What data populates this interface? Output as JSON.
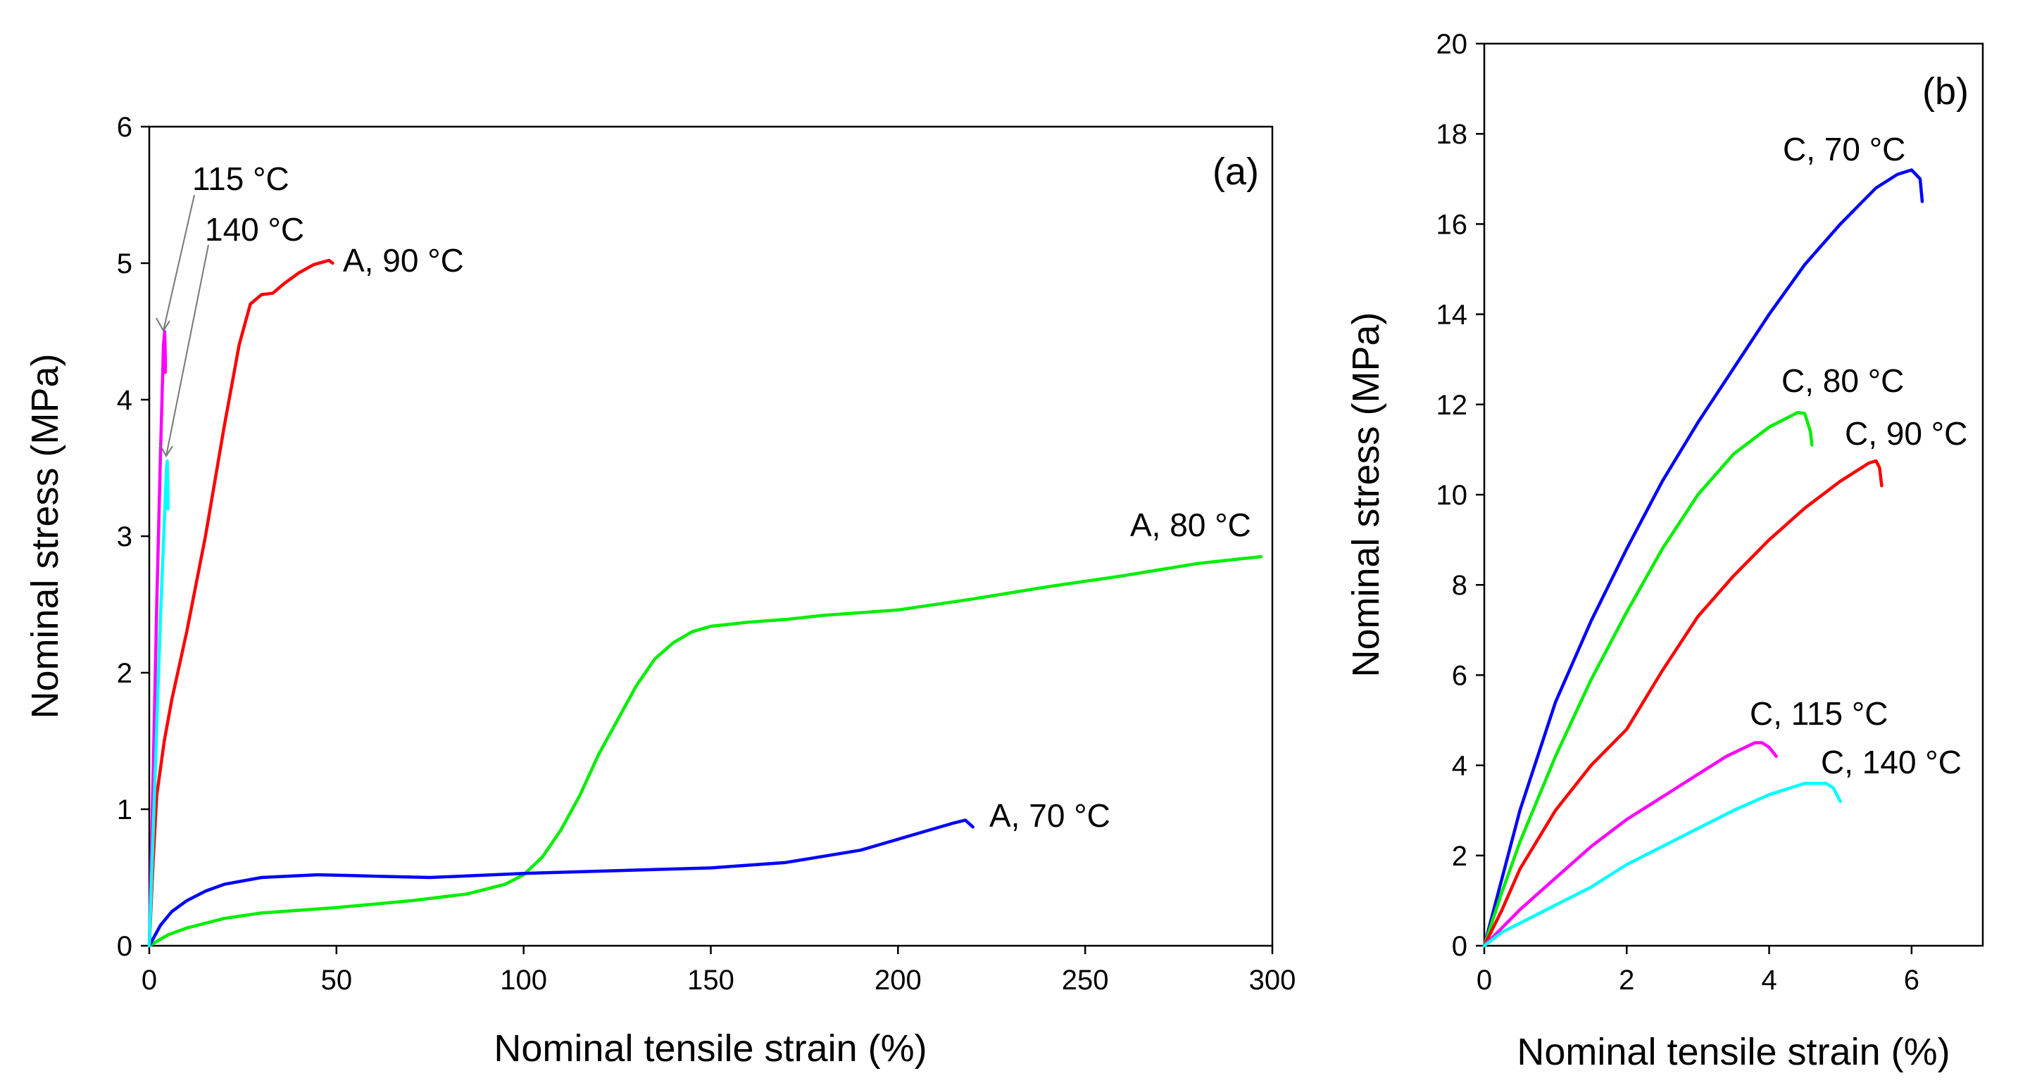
{
  "chart_data": [
    {
      "type": "line",
      "panel_label": "(a)",
      "title": "",
      "xlabel": "Nominal tensile strain (%)",
      "ylabel": "Nominal stress (MPa)",
      "xlim": [
        0,
        300
      ],
      "ylim": [
        0,
        6
      ],
      "xticks": [
        0,
        50,
        100,
        150,
        200,
        250,
        300
      ],
      "yticks": [
        0,
        1,
        2,
        3,
        4,
        5,
        6
      ],
      "grid": false,
      "series": [
        {
          "name": "A, 90 °C",
          "color": "#ff0000",
          "points": [
            [
              0,
              0
            ],
            [
              1,
              0.6
            ],
            [
              2,
              1.1
            ],
            [
              4,
              1.5
            ],
            [
              6,
              1.8
            ],
            [
              10,
              2.3
            ],
            [
              15,
              3.0
            ],
            [
              20,
              3.8
            ],
            [
              24,
              4.4
            ],
            [
              27,
              4.7
            ],
            [
              30,
              4.77
            ],
            [
              33,
              4.78
            ],
            [
              36,
              4.85
            ],
            [
              40,
              4.93
            ],
            [
              44,
              4.99
            ],
            [
              48,
              5.02
            ],
            [
              49,
              5.0
            ]
          ]
        },
        {
          "name": "A, 80 °C",
          "color": "#00ee00",
          "points": [
            [
              0,
              0
            ],
            [
              5,
              0.08
            ],
            [
              10,
              0.13
            ],
            [
              20,
              0.2
            ],
            [
              30,
              0.24
            ],
            [
              50,
              0.28
            ],
            [
              70,
              0.33
            ],
            [
              85,
              0.38
            ],
            [
              95,
              0.45
            ],
            [
              100,
              0.52
            ],
            [
              105,
              0.65
            ],
            [
              110,
              0.85
            ],
            [
              115,
              1.1
            ],
            [
              120,
              1.4
            ],
            [
              125,
              1.65
            ],
            [
              130,
              1.9
            ],
            [
              135,
              2.1
            ],
            [
              140,
              2.22
            ],
            [
              145,
              2.3
            ],
            [
              150,
              2.34
            ],
            [
              160,
              2.37
            ],
            [
              170,
              2.39
            ],
            [
              180,
              2.42
            ],
            [
              200,
              2.46
            ],
            [
              220,
              2.54
            ],
            [
              240,
              2.63
            ],
            [
              260,
              2.71
            ],
            [
              280,
              2.8
            ],
            [
              290,
              2.83
            ],
            [
              297,
              2.85
            ]
          ]
        },
        {
          "name": "A, 70 °C",
          "color": "#0000ff",
          "points": [
            [
              0,
              0
            ],
            [
              3,
              0.15
            ],
            [
              6,
              0.25
            ],
            [
              10,
              0.33
            ],
            [
              15,
              0.4
            ],
            [
              20,
              0.45
            ],
            [
              30,
              0.5
            ],
            [
              45,
              0.52
            ],
            [
              60,
              0.51
            ],
            [
              75,
              0.5
            ],
            [
              100,
              0.53
            ],
            [
              150,
              0.57
            ],
            [
              170,
              0.61
            ],
            [
              190,
              0.7
            ],
            [
              205,
              0.82
            ],
            [
              215,
              0.9
            ],
            [
              218,
              0.92
            ],
            [
              220,
              0.87
            ]
          ]
        },
        {
          "name": "115 °C",
          "color": "#ff00ff",
          "points": [
            [
              0,
              0
            ],
            [
              1,
              1.2
            ],
            [
              2,
              2.5
            ],
            [
              3,
              3.6
            ],
            [
              3.8,
              4.4
            ],
            [
              4.1,
              4.5
            ],
            [
              4.3,
              4.3
            ],
            [
              4.3,
              4.2
            ]
          ]
        },
        {
          "name": "140 °C",
          "color": "#00ffff",
          "points": [
            [
              0,
              0
            ],
            [
              1,
              0.8
            ],
            [
              2,
              1.6
            ],
            [
              3,
              2.4
            ],
            [
              4,
              3.1
            ],
            [
              4.6,
              3.5
            ],
            [
              4.8,
              3.55
            ],
            [
              5,
              3.3
            ],
            [
              5,
              3.2
            ]
          ]
        }
      ],
      "annotations": [
        {
          "text": "A, 90 °C"
        },
        {
          "text": "A, 80 °C"
        },
        {
          "text": "A, 70 °C"
        },
        {
          "text": "115 °C"
        },
        {
          "text": "140 °C"
        }
      ]
    },
    {
      "type": "line",
      "panel_label": "(b)",
      "title": "",
      "xlabel": "Nominal tensile strain (%)",
      "ylabel": "Nominal stress (MPa)",
      "xlim": [
        0,
        7
      ],
      "ylim": [
        0,
        20
      ],
      "xticks": [
        0,
        2,
        4,
        6
      ],
      "yticks": [
        0,
        2,
        4,
        6,
        8,
        10,
        12,
        14,
        16,
        18,
        20
      ],
      "grid": false,
      "series": [
        {
          "name": "C, 70 °C",
          "color": "#0000ff",
          "points": [
            [
              0,
              0
            ],
            [
              0.25,
              1.5
            ],
            [
              0.5,
              3.0
            ],
            [
              1,
              5.4
            ],
            [
              1.5,
              7.2
            ],
            [
              2,
              8.8
            ],
            [
              2.5,
              10.3
            ],
            [
              3,
              11.6
            ],
            [
              3.5,
              12.8
            ],
            [
              4,
              14.0
            ],
            [
              4.5,
              15.1
            ],
            [
              5,
              16.0
            ],
            [
              5.5,
              16.8
            ],
            [
              5.8,
              17.1
            ],
            [
              6.0,
              17.2
            ],
            [
              6.12,
              17.0
            ],
            [
              6.15,
              16.5
            ]
          ]
        },
        {
          "name": "C, 80 °C",
          "color": "#00ee00",
          "points": [
            [
              0,
              0
            ],
            [
              0.25,
              1.2
            ],
            [
              0.5,
              2.3
            ],
            [
              1,
              4.2
            ],
            [
              1.5,
              5.9
            ],
            [
              2,
              7.4
            ],
            [
              2.5,
              8.8
            ],
            [
              3,
              10.0
            ],
            [
              3.5,
              10.9
            ],
            [
              4,
              11.5
            ],
            [
              4.4,
              11.82
            ],
            [
              4.5,
              11.8
            ],
            [
              4.58,
              11.4
            ],
            [
              4.6,
              11.1
            ]
          ]
        },
        {
          "name": "C, 90 °C",
          "color": "#ff0000",
          "points": [
            [
              0,
              0
            ],
            [
              0.25,
              0.8
            ],
            [
              0.5,
              1.7
            ],
            [
              1,
              3.0
            ],
            [
              1.5,
              4.0
            ],
            [
              2,
              4.8
            ],
            [
              2.5,
              6.1
            ],
            [
              3,
              7.3
            ],
            [
              3.5,
              8.2
            ],
            [
              4,
              9.0
            ],
            [
              4.5,
              9.7
            ],
            [
              5,
              10.3
            ],
            [
              5.4,
              10.7
            ],
            [
              5.5,
              10.75
            ],
            [
              5.55,
              10.6
            ],
            [
              5.58,
              10.2
            ]
          ]
        },
        {
          "name": "C, 115 °C",
          "color": "#ff00ff",
          "points": [
            [
              0,
              0
            ],
            [
              0.25,
              0.4
            ],
            [
              0.5,
              0.8
            ],
            [
              1,
              1.5
            ],
            [
              1.5,
              2.2
            ],
            [
              2,
              2.8
            ],
            [
              2.5,
              3.3
            ],
            [
              3,
              3.8
            ],
            [
              3.4,
              4.2
            ],
            [
              3.8,
              4.5
            ],
            [
              3.9,
              4.5
            ],
            [
              4,
              4.4
            ],
            [
              4.1,
              4.2
            ]
          ]
        },
        {
          "name": "C, 140 °C",
          "color": "#00ffff",
          "points": [
            [
              0,
              0
            ],
            [
              0.25,
              0.3
            ],
            [
              0.5,
              0.5
            ],
            [
              1,
              0.9
            ],
            [
              1.5,
              1.3
            ],
            [
              2,
              1.8
            ],
            [
              2.5,
              2.2
            ],
            [
              3,
              2.6
            ],
            [
              3.5,
              3.0
            ],
            [
              4,
              3.35
            ],
            [
              4.5,
              3.6
            ],
            [
              4.8,
              3.6
            ],
            [
              4.9,
              3.5
            ],
            [
              5,
              3.2
            ]
          ]
        }
      ],
      "annotations": [
        {
          "text": "C, 70 °C"
        },
        {
          "text": "C, 80 °C"
        },
        {
          "text": "C, 90 °C"
        },
        {
          "text": "C, 115 °C"
        },
        {
          "text": "C, 140 °C"
        }
      ]
    }
  ]
}
